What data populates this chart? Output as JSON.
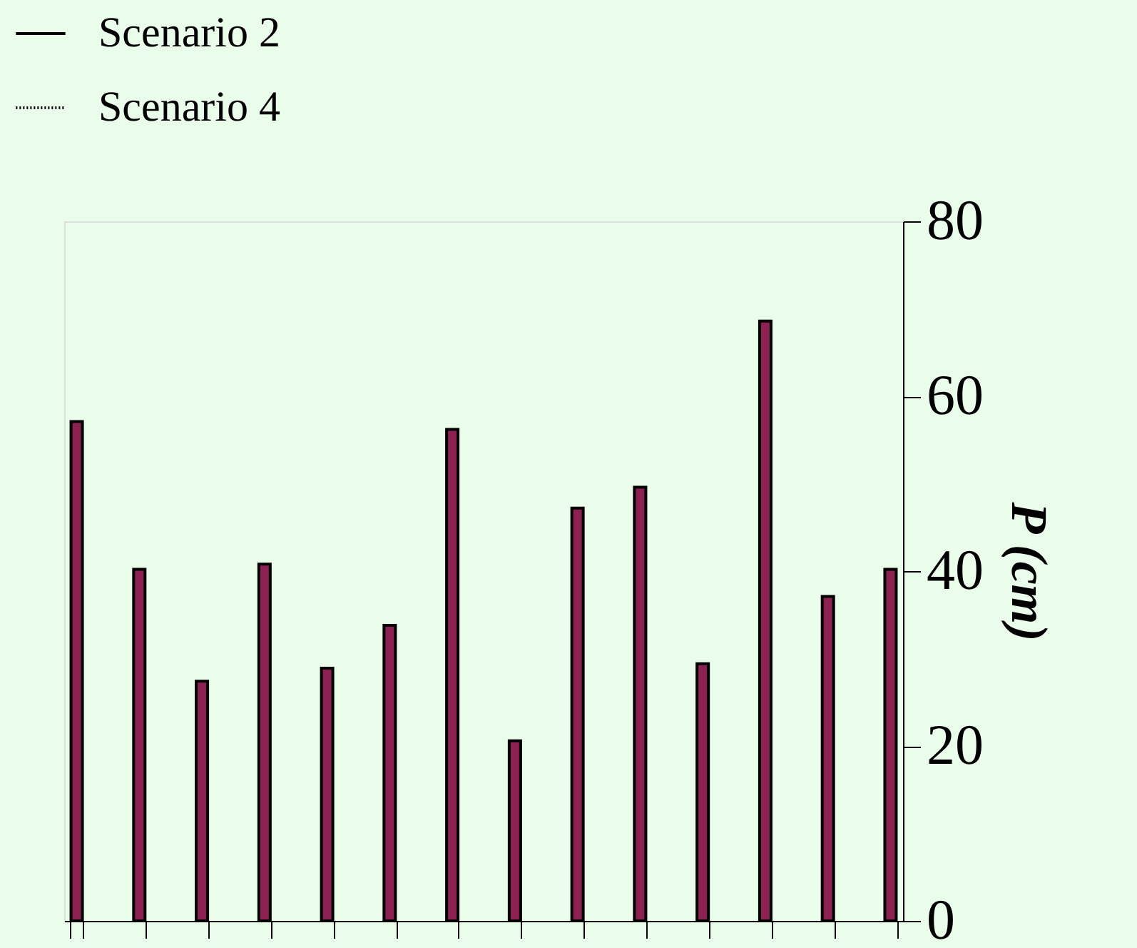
{
  "chart_data": {
    "type": "bar",
    "ylabel": "P (cm)",
    "categories": [
      null,
      null,
      null,
      null,
      null,
      null,
      null,
      null,
      null,
      null,
      null,
      null,
      null,
      null
    ],
    "series": [
      {
        "color": "#8b2252",
        "values": [
          57.1,
          40.2,
          27.4,
          40.8,
          28.9,
          33.8,
          56.2,
          20.6,
          47.2,
          49.6,
          29.4,
          68.6,
          37.1,
          40.2
        ]
      },
      {
        "type": "line",
        "name": "Scenario 2",
        "color": "#000000",
        "line_style": "solid",
        "values": [
          null,
          null,
          null,
          null,
          null,
          null,
          null,
          null,
          null,
          null,
          null,
          null,
          null,
          null
        ]
      },
      {
        "type": "line",
        "name": "Scenario 4",
        "color": "#000000",
        "line_style": "dotted",
        "values": [
          null,
          null,
          null,
          null,
          null,
          null,
          null,
          null,
          null,
          null,
          null,
          null,
          null,
          null
        ]
      }
    ],
    "ylim": [
      0,
      80
    ],
    "yticks": [
      0,
      20,
      40,
      60,
      80
    ],
    "grid": false,
    "legend": "top left"
  }
}
